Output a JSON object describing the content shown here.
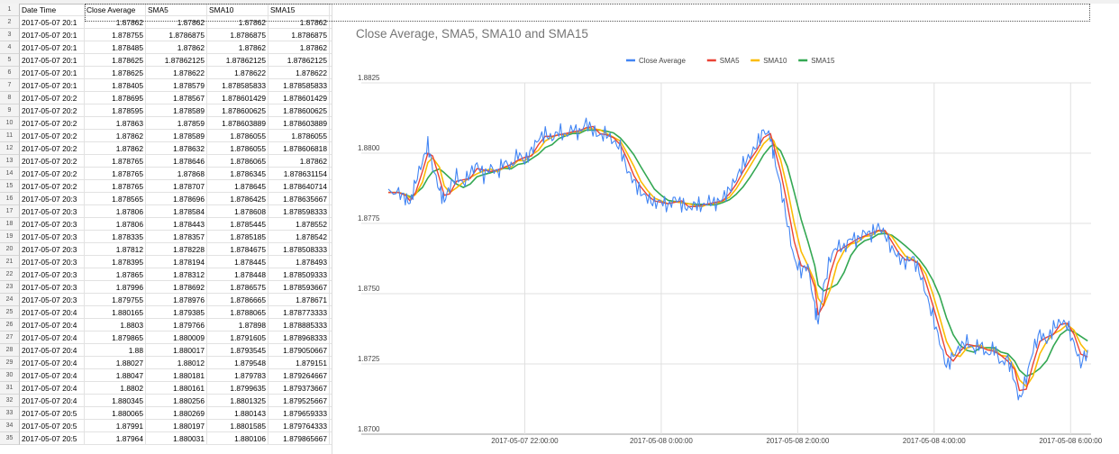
{
  "spreadsheet": {
    "headers": [
      "Date Time",
      "Close Average",
      "SMA5",
      "SMA10",
      "SMA15"
    ],
    "row_numbers": [
      "1",
      "2",
      "3",
      "4",
      "5",
      "6",
      "7",
      "8",
      "9",
      "10",
      "11",
      "12",
      "13",
      "14",
      "15",
      "16",
      "17",
      "18",
      "19",
      "20",
      "21",
      "22",
      "23",
      "24",
      "25",
      "26",
      "27",
      "28",
      "29",
      "30",
      "31",
      "32",
      "33",
      "34",
      "35"
    ],
    "rows": [
      [
        "2017-05-07 20:1",
        "1.87862",
        "1.87862",
        "1.87862",
        "1.87862"
      ],
      [
        "2017-05-07 20:1",
        "1.878755",
        "1.8786875",
        "1.8786875",
        "1.8786875"
      ],
      [
        "2017-05-07 20:1",
        "1.878485",
        "1.87862",
        "1.87862",
        "1.87862"
      ],
      [
        "2017-05-07 20:1",
        "1.878625",
        "1.87862125",
        "1.87862125",
        "1.87862125"
      ],
      [
        "2017-05-07 20:1",
        "1.878625",
        "1.878622",
        "1.878622",
        "1.878622"
      ],
      [
        "2017-05-07 20:1",
        "1.878405",
        "1.878579",
        "1.878585833",
        "1.878585833"
      ],
      [
        "2017-05-07 20:2",
        "1.878695",
        "1.878567",
        "1.878601429",
        "1.878601429"
      ],
      [
        "2017-05-07 20:2",
        "1.878595",
        "1.878589",
        "1.878600625",
        "1.878600625"
      ],
      [
        "2017-05-07 20:2",
        "1.87863",
        "1.87859",
        "1.878603889",
        "1.878603889"
      ],
      [
        "2017-05-07 20:2",
        "1.87862",
        "1.878589",
        "1.8786055",
        "1.8786055"
      ],
      [
        "2017-05-07 20:2",
        "1.87862",
        "1.878632",
        "1.8786055",
        "1.878606818"
      ],
      [
        "2017-05-07 20:2",
        "1.878765",
        "1.878646",
        "1.8786065",
        "1.87862"
      ],
      [
        "2017-05-07 20:2",
        "1.878765",
        "1.87868",
        "1.8786345",
        "1.878631154"
      ],
      [
        "2017-05-07 20:2",
        "1.878765",
        "1.878707",
        "1.878645",
        "1.878640714"
      ],
      [
        "2017-05-07 20:3",
        "1.878565",
        "1.878696",
        "1.8786425",
        "1.878635667"
      ],
      [
        "2017-05-07 20:3",
        "1.87806",
        "1.878584",
        "1.878608",
        "1.878598333"
      ],
      [
        "2017-05-07 20:3",
        "1.87806",
        "1.878443",
        "1.8785445",
        "1.878552"
      ],
      [
        "2017-05-07 20:3",
        "1.878335",
        "1.878357",
        "1.8785185",
        "1.878542"
      ],
      [
        "2017-05-07 20:3",
        "1.87812",
        "1.878228",
        "1.8784675",
        "1.878508333"
      ],
      [
        "2017-05-07 20:3",
        "1.878395",
        "1.878194",
        "1.878445",
        "1.878493"
      ],
      [
        "2017-05-07 20:3",
        "1.87865",
        "1.878312",
        "1.878448",
        "1.878509333"
      ],
      [
        "2017-05-07 20:3",
        "1.87996",
        "1.878692",
        "1.8786575",
        "1.878593667"
      ],
      [
        "2017-05-07 20:3",
        "1.879755",
        "1.878976",
        "1.8786665",
        "1.878671"
      ],
      [
        "2017-05-07 20:4",
        "1.880165",
        "1.879385",
        "1.8788065",
        "1.878773333"
      ],
      [
        "2017-05-07 20:4",
        "1.8803",
        "1.879766",
        "1.87898",
        "1.878885333"
      ],
      [
        "2017-05-07 20:4",
        "1.879865",
        "1.880009",
        "1.8791605",
        "1.878968333"
      ],
      [
        "2017-05-07 20:4",
        "1.88",
        "1.880017",
        "1.8793545",
        "1.879050667"
      ],
      [
        "2017-05-07 20:4",
        "1.88027",
        "1.88012",
        "1.879548",
        "1.879151"
      ],
      [
        "2017-05-07 20:4",
        "1.88047",
        "1.880181",
        "1.879783",
        "1.879264667"
      ],
      [
        "2017-05-07 20:4",
        "1.8802",
        "1.880161",
        "1.8799635",
        "1.879373667"
      ],
      [
        "2017-05-07 20:4",
        "1.880345",
        "1.880256",
        "1.8801325",
        "1.879525667"
      ],
      [
        "2017-05-07 20:5",
        "1.880065",
        "1.880269",
        "1.880143",
        "1.879659333"
      ],
      [
        "2017-05-07 20:5",
        "1.87991",
        "1.880197",
        "1.8801585",
        "1.879764333"
      ],
      [
        "2017-05-07 20:5",
        "1.87964",
        "1.880031",
        "1.880106",
        "1.879865667"
      ]
    ]
  },
  "chart_data": {
    "type": "line",
    "title": "Close Average, SMA5, SMA10 and SMA15",
    "legend_position": "top",
    "grid": true,
    "ylim": [
      1.87,
      1.8825
    ],
    "y_ticks": [
      "1.8825",
      "1.8800",
      "1.8775",
      "1.8750",
      "1.8725",
      "1.8700"
    ],
    "x_ticks": [
      "2017-05-07 22:00:00",
      "2017-05-08 0:00:00",
      "2017-05-08 2:00:00",
      "2017-05-08 4:00:00",
      "2017-05-08 6:00:00"
    ],
    "x_tick_positions_hours": [
      2,
      4,
      6,
      8,
      10
    ],
    "x_range_hours": [
      0,
      10.3
    ],
    "series": [
      {
        "name": "Close Average",
        "color": "#4285f4"
      },
      {
        "name": "SMA5",
        "color": "#ea4335"
      },
      {
        "name": "SMA10",
        "color": "#fbbc04"
      },
      {
        "name": "SMA15",
        "color": "#34a853"
      }
    ],
    "close_average_points": [
      [
        0.0,
        1.8786
      ],
      [
        0.15,
        1.8786
      ],
      [
        0.25,
        1.8784
      ],
      [
        0.32,
        1.8782
      ],
      [
        0.4,
        1.879
      ],
      [
        0.5,
        1.8797
      ],
      [
        0.58,
        1.8803
      ],
      [
        0.65,
        1.8795
      ],
      [
        0.75,
        1.8787
      ],
      [
        0.82,
        1.8783
      ],
      [
        0.9,
        1.8788
      ],
      [
        1.0,
        1.8792
      ],
      [
        1.1,
        1.8789
      ],
      [
        1.2,
        1.8793
      ],
      [
        1.3,
        1.8796
      ],
      [
        1.4,
        1.8792
      ],
      [
        1.5,
        1.8795
      ],
      [
        1.6,
        1.8793
      ],
      [
        1.7,
        1.8797
      ],
      [
        1.8,
        1.8795
      ],
      [
        1.9,
        1.88
      ],
      [
        2.0,
        1.8797
      ],
      [
        2.1,
        1.8801
      ],
      [
        2.2,
        1.8805
      ],
      [
        2.3,
        1.8807
      ],
      [
        2.4,
        1.8805
      ],
      [
        2.5,
        1.8808
      ],
      [
        2.6,
        1.8806
      ],
      [
        2.7,
        1.8809
      ],
      [
        2.8,
        1.8807
      ],
      [
        2.9,
        1.8811
      ],
      [
        3.0,
        1.8808
      ],
      [
        3.1,
        1.8806
      ],
      [
        3.2,
        1.8807
      ],
      [
        3.3,
        1.8804
      ],
      [
        3.4,
        1.8802
      ],
      [
        3.5,
        1.8794
      ],
      [
        3.6,
        1.879
      ],
      [
        3.7,
        1.8786
      ],
      [
        3.8,
        1.8784
      ],
      [
        3.9,
        1.8782
      ],
      [
        4.0,
        1.8783
      ],
      [
        4.1,
        1.8781
      ],
      [
        4.2,
        1.8784
      ],
      [
        4.3,
        1.8782
      ],
      [
        4.4,
        1.878
      ],
      [
        4.5,
        1.8782
      ],
      [
        4.6,
        1.8781
      ],
      [
        4.7,
        1.8783
      ],
      [
        4.8,
        1.8782
      ],
      [
        4.9,
        1.8784
      ],
      [
        5.0,
        1.8787
      ],
      [
        5.1,
        1.8791
      ],
      [
        5.2,
        1.8796
      ],
      [
        5.3,
        1.8799
      ],
      [
        5.4,
        1.8803
      ],
      [
        5.5,
        1.8808
      ],
      [
        5.6,
        1.8806
      ],
      [
        5.65,
        1.8799
      ],
      [
        5.75,
        1.8788
      ],
      [
        5.85,
        1.8775
      ],
      [
        5.95,
        1.8762
      ],
      [
        6.05,
        1.8758
      ],
      [
        6.15,
        1.876
      ],
      [
        6.25,
        1.8745
      ],
      [
        6.3,
        1.874
      ],
      [
        6.38,
        1.8752
      ],
      [
        6.48,
        1.8763
      ],
      [
        6.58,
        1.8767
      ],
      [
        6.68,
        1.8766
      ],
      [
        6.78,
        1.877
      ],
      [
        6.88,
        1.8769
      ],
      [
        6.98,
        1.8772
      ],
      [
        7.08,
        1.8771
      ],
      [
        7.18,
        1.8774
      ],
      [
        7.28,
        1.8771
      ],
      [
        7.38,
        1.8766
      ],
      [
        7.48,
        1.8763
      ],
      [
        7.58,
        1.8761
      ],
      [
        7.68,
        1.8763
      ],
      [
        7.78,
        1.8758
      ],
      [
        7.88,
        1.875
      ],
      [
        7.98,
        1.8742
      ],
      [
        8.08,
        1.8733
      ],
      [
        8.18,
        1.8724
      ],
      [
        8.28,
        1.8728
      ],
      [
        8.38,
        1.8731
      ],
      [
        8.48,
        1.8733
      ],
      [
        8.58,
        1.873
      ],
      [
        8.68,
        1.8732
      ],
      [
        8.78,
        1.8728
      ],
      [
        8.88,
        1.8731
      ],
      [
        8.98,
        1.8725
      ],
      [
        9.08,
        1.8727
      ],
      [
        9.18,
        1.8719
      ],
      [
        9.25,
        1.8712
      ],
      [
        9.35,
        1.872
      ],
      [
        9.45,
        1.873
      ],
      [
        9.55,
        1.8736
      ],
      [
        9.65,
        1.8733
      ],
      [
        9.75,
        1.8738
      ],
      [
        9.85,
        1.874
      ],
      [
        9.95,
        1.8739
      ],
      [
        10.05,
        1.8732
      ],
      [
        10.15,
        1.8725
      ],
      [
        10.25,
        1.873
      ]
    ]
  }
}
